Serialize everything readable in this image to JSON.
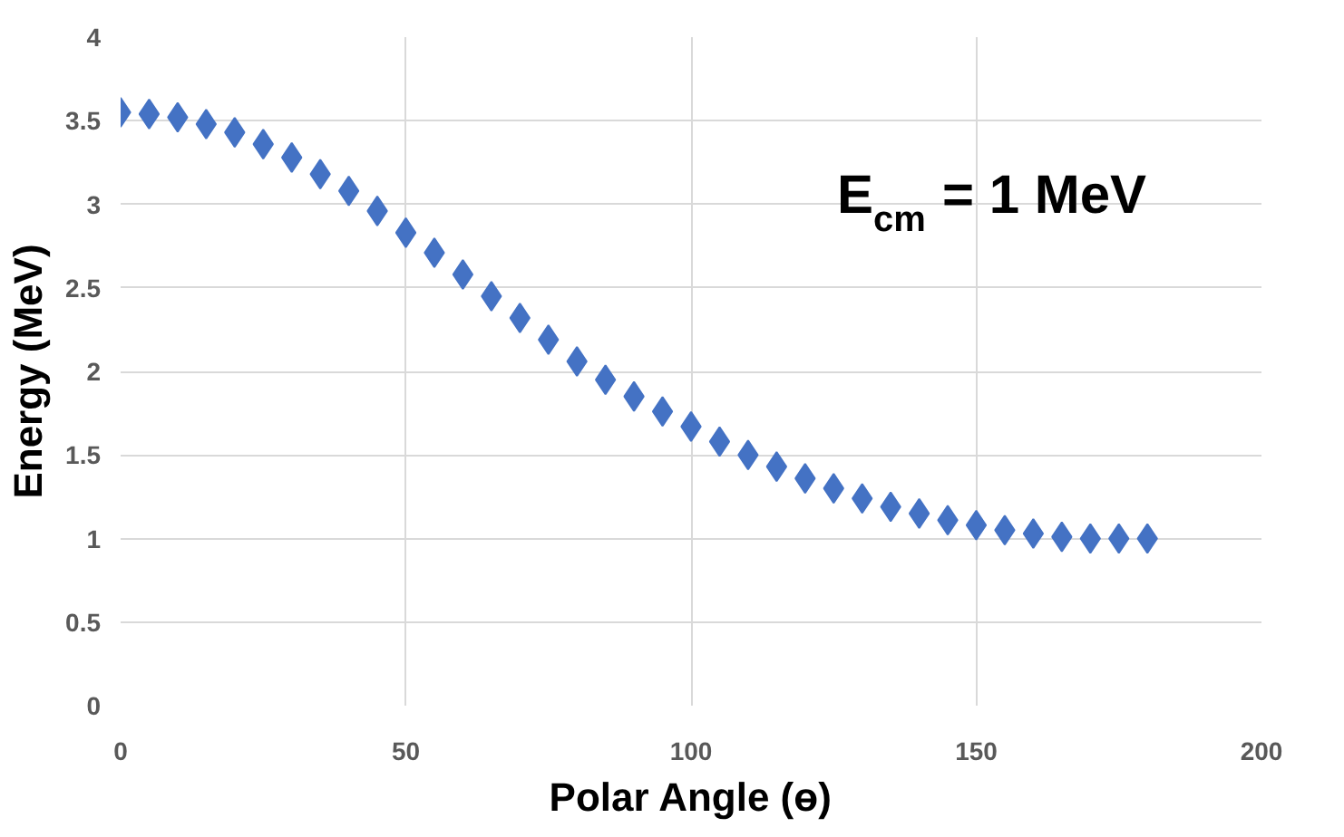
{
  "chart_data": {
    "type": "scatter",
    "xlabel": "Polar Angle (ɵ)",
    "ylabel": "Energy (MeV)",
    "x": [
      0,
      5,
      10,
      15,
      20,
      25,
      30,
      35,
      40,
      45,
      50,
      55,
      60,
      65,
      70,
      75,
      80,
      85,
      90,
      95,
      100,
      105,
      110,
      115,
      120,
      125,
      130,
      135,
      140,
      145,
      150,
      155,
      160,
      165,
      170,
      175,
      180
    ],
    "series": [
      {
        "color": "#4472c4",
        "values": [
          3.55,
          3.54,
          3.52,
          3.48,
          3.43,
          3.36,
          3.28,
          3.18,
          3.08,
          2.96,
          2.83,
          2.71,
          2.58,
          2.45,
          2.32,
          2.19,
          2.06,
          1.95,
          1.85,
          1.76,
          1.67,
          1.58,
          1.5,
          1.43,
          1.36,
          1.3,
          1.24,
          1.19,
          1.15,
          1.11,
          1.08,
          1.05,
          1.03,
          1.01,
          1.0,
          1.0,
          1.0
        ]
      }
    ],
    "marker": "diamond",
    "grid": true,
    "xlim": [
      0,
      200
    ],
    "xticks": [
      0,
      50,
      100,
      150,
      200
    ],
    "ylim": [
      0,
      4
    ],
    "yticks": [
      0,
      0.5,
      1,
      1.5,
      2,
      2.5,
      3,
      3.5,
      4
    ],
    "annotations": [
      "E$_{cm}$ = 1 MeV"
    ]
  }
}
